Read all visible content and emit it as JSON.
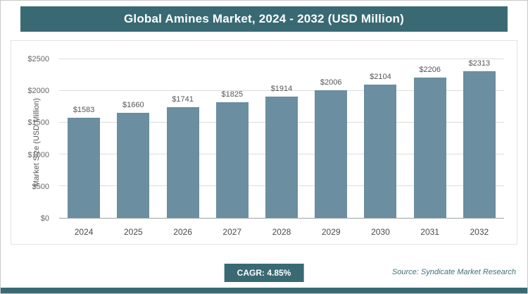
{
  "title": "Global Amines Market, 2024 - 2032 (USD Million)",
  "chart_data": {
    "type": "bar",
    "title": "Global Amines Market, 2024 - 2032 (USD Million)",
    "categories": [
      "2024",
      "2025",
      "2026",
      "2027",
      "2028",
      "2029",
      "2030",
      "2031",
      "2032"
    ],
    "values": [
      1583,
      1660,
      1741,
      1825,
      1914,
      2006,
      2104,
      2206,
      2313
    ],
    "value_labels": [
      "$1583",
      "$1660",
      "$1741",
      "$1825",
      "$1914",
      "$2006",
      "$2104",
      "$2206",
      "$2313"
    ],
    "xlabel": "",
    "ylabel": "Market Size (USD Million)",
    "ylim": [
      0,
      2500
    ],
    "ytick_step": 500,
    "ytick_labels": [
      "$0",
      "$500",
      "$1000",
      "$1500",
      "$2000",
      "$2500"
    ],
    "grid": "horizontal",
    "legend": "none",
    "bar_color": "#6b8ea0"
  },
  "footer": {
    "cagr_label": "CAGR: 4.85%",
    "source": "Source: Syndicate Market Research"
  },
  "colors": {
    "accent": "#396a74",
    "bar": "#6b8ea0",
    "gridline": "#dcdcdc"
  }
}
